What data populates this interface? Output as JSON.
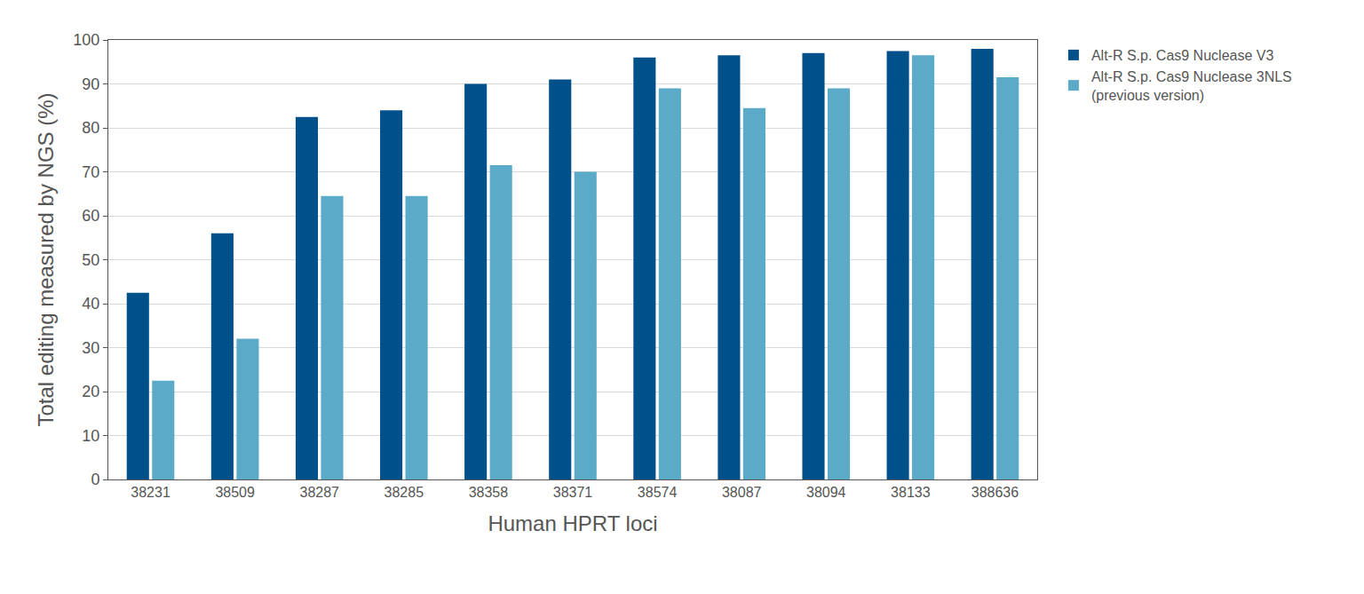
{
  "chart_data": {
    "type": "bar",
    "x_label": "Human HPRT loci",
    "y_label": "Total editing measured by NGS (%)",
    "categories": [
      "38231",
      "38509",
      "38287",
      "38285",
      "38358",
      "38371",
      "38574",
      "38087",
      "38094",
      "38133",
      "388636"
    ],
    "series": [
      {
        "name": "Alt-R S.p. Cas9 Nuclease V3",
        "color": "#00508a",
        "values": [
          42.5,
          56,
          82.5,
          84,
          90,
          91,
          96,
          96.5,
          97,
          97.5,
          98
        ]
      },
      {
        "name": "Alt-R S.p. Cas9 Nuclease 3NLS (previous version)",
        "color": "#5aaac8",
        "values": [
          22.5,
          32,
          64.5,
          64.5,
          71.5,
          70,
          89,
          84.5,
          89,
          96.5,
          91.5
        ]
      }
    ],
    "ylim": [
      0,
      100
    ],
    "yticks": [
      0,
      10,
      20,
      30,
      40,
      50,
      60,
      70,
      80,
      90,
      100
    ],
    "grid": true,
    "legend": "right"
  }
}
